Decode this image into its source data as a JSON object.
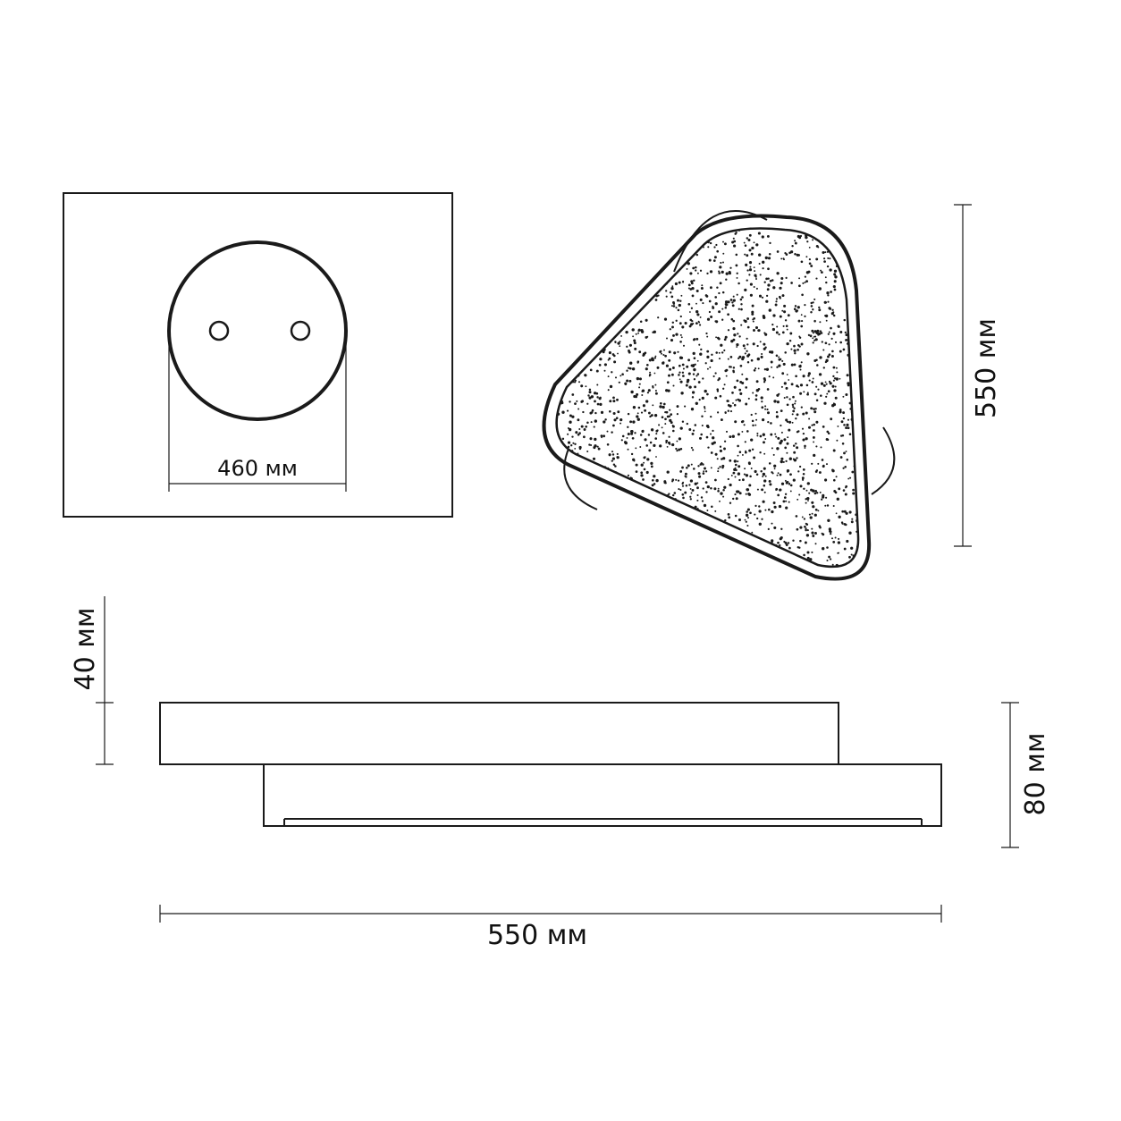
{
  "drawing": {
    "mount_plate": {
      "hole_spacing_label": "460 мм"
    },
    "top_view": {
      "height_label": "550 мм"
    },
    "side_view": {
      "top_disc_height_label": "40 мм",
      "total_height_label": "80 мм",
      "total_width_label": "550 мм"
    }
  },
  "colors": {
    "line": "#1a1a1a",
    "background": "#ffffff"
  }
}
